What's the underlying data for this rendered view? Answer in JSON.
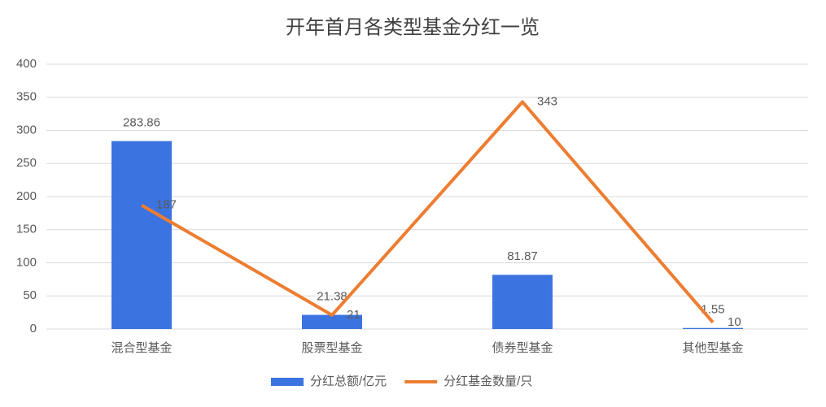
{
  "chart_data": {
    "type": "bar-line",
    "title": "开年首月各类型基金分红一览",
    "categories": [
      "混合型基金",
      "股票型基金",
      "债券型基金",
      "其他型基金"
    ],
    "series": [
      {
        "name": "分红总额/亿元",
        "type": "bar",
        "color": "#3b73e0",
        "values": [
          283.86,
          21.38,
          81.87,
          1.55
        ]
      },
      {
        "name": "分红基金数量/只",
        "type": "line",
        "color": "#ed7d31",
        "values": [
          187,
          21,
          343,
          10
        ]
      }
    ],
    "ylim": [
      0,
      400
    ],
    "yticks": [
      0,
      50,
      100,
      150,
      200,
      250,
      300,
      350,
      400
    ],
    "grid": true,
    "legend": "bottom"
  }
}
